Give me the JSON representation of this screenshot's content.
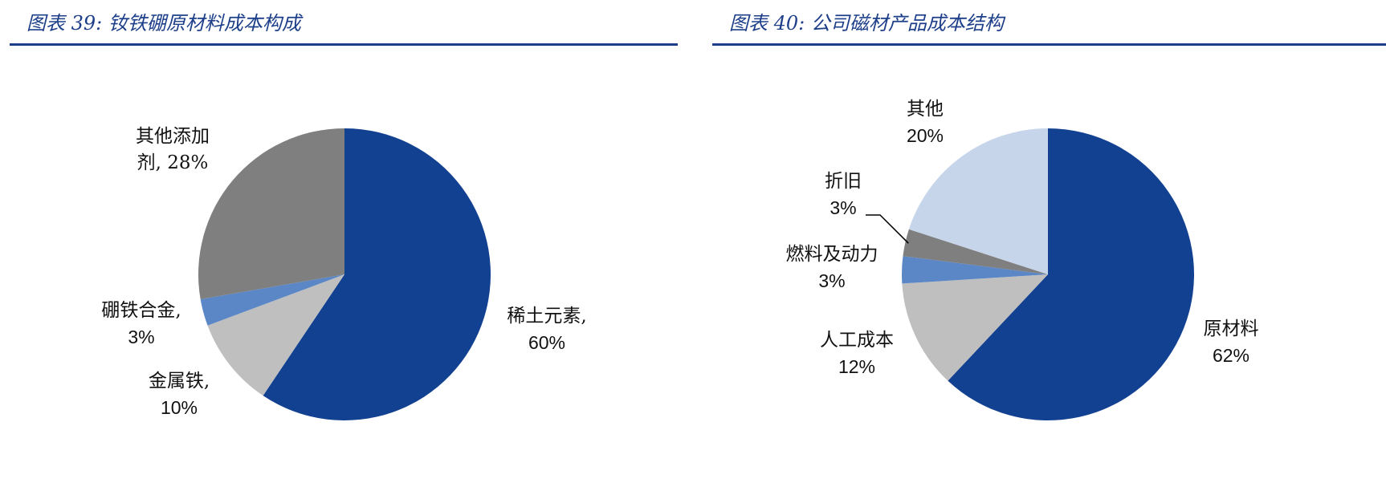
{
  "charts": [
    {
      "title": "图表 39:  钕铁硼原材料成本构成",
      "chart_data": {
        "type": "pie",
        "title": "图表 39:  钕铁硼原材料成本构成",
        "start_angle_deg": 0,
        "direction": "clockwise",
        "slices": [
          {
            "label": "稀土元素",
            "value": 60,
            "display_name": "稀土元素,",
            "display_value": "60%",
            "color": "#134191"
          },
          {
            "label": "金属铁",
            "value": 10,
            "display_name": "金属铁,",
            "display_value": "10%",
            "color": "#bfbfbf"
          },
          {
            "label": "硼铁合金",
            "value": 3,
            "display_name": "硼铁合金,",
            "display_value": "3%",
            "color": "#5b87c6"
          },
          {
            "label": "其他添加剂",
            "value": 28,
            "display_name": "其他添加\n剂, 28%",
            "display_value": "",
            "color": "#7f7f7f"
          }
        ]
      }
    },
    {
      "title": "图表 40:  公司磁材产品成本结构",
      "chart_data": {
        "type": "pie",
        "title": "图表 40:  公司磁材产品成本结构",
        "start_angle_deg": 0,
        "direction": "clockwise",
        "slices": [
          {
            "label": "原材料",
            "value": 62,
            "display_name": "原材料",
            "display_value": "62%",
            "color": "#134191"
          },
          {
            "label": "人工成本",
            "value": 12,
            "display_name": "人工成本",
            "display_value": "12%",
            "color": "#bfbfbf"
          },
          {
            "label": "燃料及动力",
            "value": 3,
            "display_name": "燃料及动力",
            "display_value": "3%",
            "color": "#5b87c6"
          },
          {
            "label": "折旧",
            "value": 3,
            "display_name": "折旧",
            "display_value": "3%",
            "color": "#7f7f7f"
          },
          {
            "label": "其他",
            "value": 20,
            "display_name": "其他",
            "display_value": "20%",
            "color": "#c6d5ea"
          }
        ]
      }
    }
  ]
}
